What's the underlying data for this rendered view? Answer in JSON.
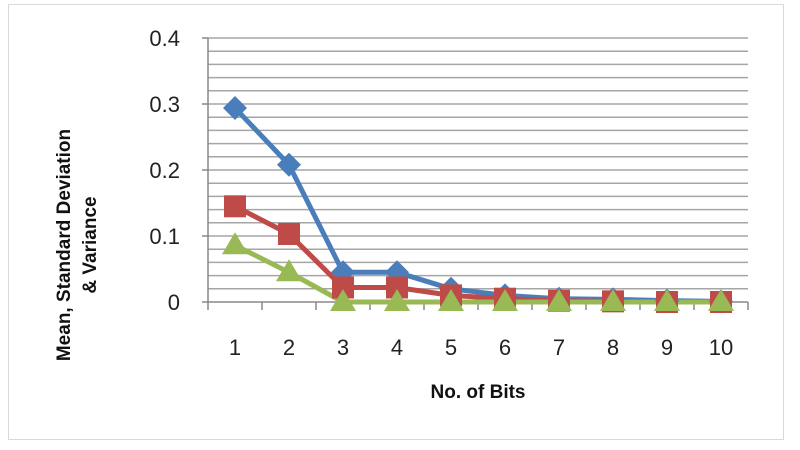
{
  "chart_data": {
    "type": "line",
    "title": "",
    "xlabel": "No. of Bits",
    "ylabel": "Mean, Standard Deviation & Variance",
    "ylabel_lines": [
      "Mean, Standard Deviation",
      "& Variance"
    ],
    "categories": [
      "1",
      "2",
      "3",
      "4",
      "5",
      "6",
      "7",
      "8",
      "9",
      "10"
    ],
    "ylim": [
      0,
      0.4
    ],
    "yticks": [
      "0",
      "0.1",
      "0.2",
      "0.3",
      "0.4"
    ],
    "ytick_values": [
      0,
      0.1,
      0.2,
      0.3,
      0.4
    ],
    "grid": true,
    "minor_grid_step": 0.02,
    "legend": "none",
    "series": [
      {
        "color": "#4a7ebb",
        "marker": "diamond",
        "values": [
          0.294,
          0.208,
          0.045,
          0.045,
          0.02,
          0.01,
          0.005,
          0.004,
          0.002,
          0.001
        ]
      },
      {
        "color": "#be4b48",
        "marker": "square",
        "values": [
          0.145,
          0.103,
          0.022,
          0.022,
          0.01,
          0.005,
          0.002,
          0.001,
          0,
          0
        ]
      },
      {
        "color": "#98b954",
        "marker": "triangle",
        "values": [
          0.086,
          0.045,
          0,
          0,
          0,
          0,
          0,
          0,
          0,
          0
        ]
      }
    ]
  }
}
